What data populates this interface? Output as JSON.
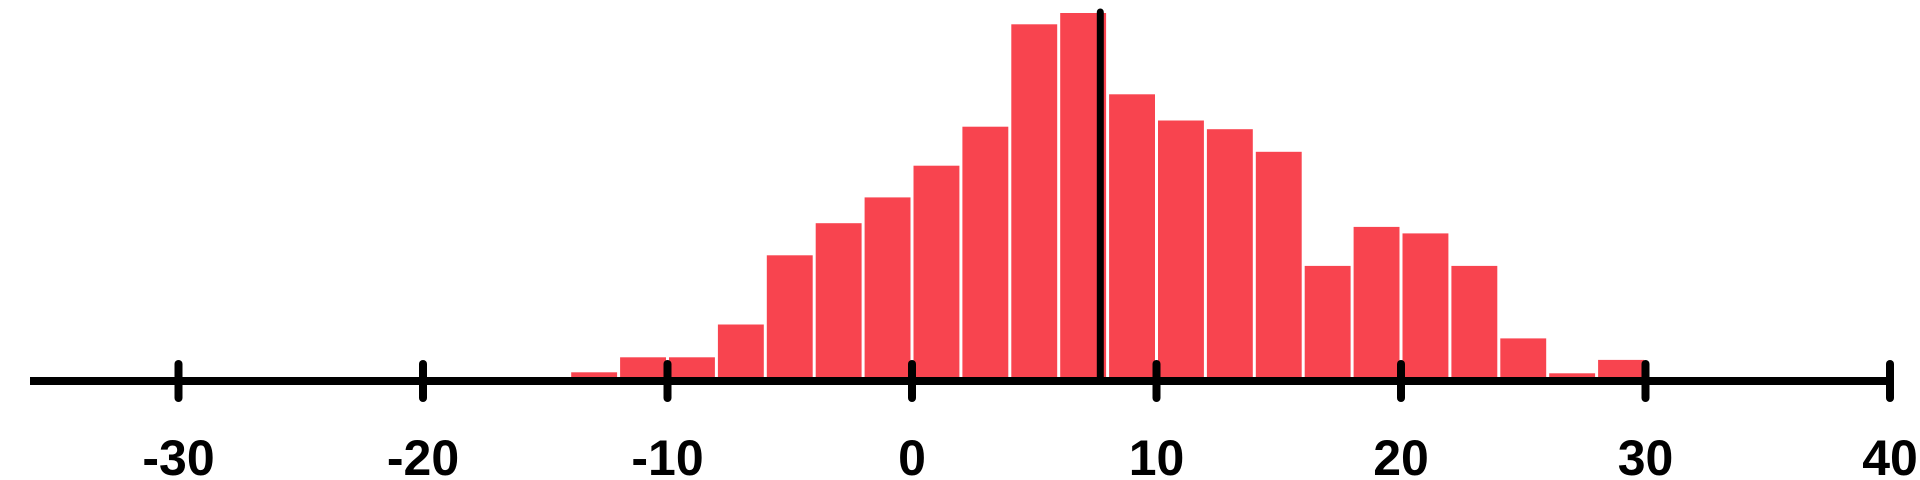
{
  "chart_data": {
    "type": "bar",
    "title": "",
    "xlabel": "",
    "ylabel": "",
    "bar_color": "#f8444f",
    "axis_color": "#000000",
    "grid": false,
    "xlim": [
      -36,
      40
    ],
    "ylim": [
      0,
      100
    ],
    "bin_width": 2,
    "bins": [
      {
        "x0": -28,
        "x1": -26,
        "count": 1.0
      },
      {
        "x0": -16,
        "x1": -14,
        "count": 0.3
      },
      {
        "x0": -14,
        "x1": -12,
        "count": 2.4
      },
      {
        "x0": -12,
        "x1": -10,
        "count": 6.5
      },
      {
        "x0": -10,
        "x1": -8,
        "count": 6.5
      },
      {
        "x0": -8,
        "x1": -6,
        "count": 15.5
      },
      {
        "x0": -6,
        "x1": -4,
        "count": 34.5
      },
      {
        "x0": -4,
        "x1": -2,
        "count": 43.3
      },
      {
        "x0": -2,
        "x1": 0,
        "count": 50.4
      },
      {
        "x0": 0,
        "x1": 2,
        "count": 59.1
      },
      {
        "x0": 2,
        "x1": 4,
        "count": 69.8
      },
      {
        "x0": 4,
        "x1": 6,
        "count": 97.9
      },
      {
        "x0": 6,
        "x1": 8,
        "count": 101.0
      },
      {
        "x0": 8,
        "x1": 10,
        "count": 78.7
      },
      {
        "x0": 10,
        "x1": 12,
        "count": 71.5
      },
      {
        "x0": 12,
        "x1": 14,
        "count": 69.1
      },
      {
        "x0": 14,
        "x1": 16,
        "count": 62.9
      },
      {
        "x0": 16,
        "x1": 18,
        "count": 31.6
      },
      {
        "x0": 18,
        "x1": 20,
        "count": 42.3
      },
      {
        "x0": 20,
        "x1": 22,
        "count": 40.5
      },
      {
        "x0": 22,
        "x1": 24,
        "count": 31.6
      },
      {
        "x0": 24,
        "x1": 26,
        "count": 11.7
      },
      {
        "x0": 26,
        "x1": 28,
        "count": 2.1
      },
      {
        "x0": 28,
        "x1": 30,
        "count": 5.8
      },
      {
        "x0": 30,
        "x1": 32,
        "count": 0.3
      },
      {
        "x0": 32,
        "x1": 34,
        "count": 0.3
      }
    ],
    "marker_line": {
      "x": 7.7
    },
    "x_ticks": [
      -30,
      -20,
      -10,
      0,
      10,
      20,
      30,
      40
    ],
    "x_tick_labels": [
      "-30",
      "-20",
      "-10",
      "0",
      "10",
      "20",
      "30",
      "40"
    ]
  }
}
